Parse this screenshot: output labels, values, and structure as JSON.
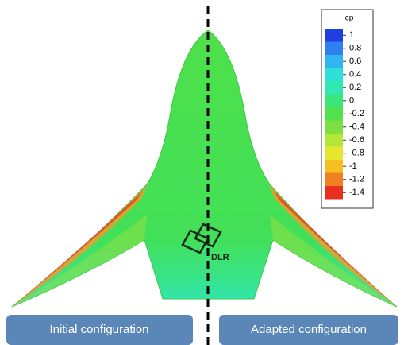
{
  "colorbar": {
    "title": "cp",
    "ticks": [
      1,
      0.8,
      0.6,
      0.4,
      0.2,
      0,
      -0.2,
      -0.4,
      -0.6,
      -0.8,
      -1,
      -1.2,
      -1.4
    ],
    "colors": [
      "#1f3fe0",
      "#2f7ff0",
      "#2fb5f0",
      "#2fe0d8",
      "#30e8b0",
      "#3ae67a",
      "#50e050",
      "#7ee040",
      "#b4e838",
      "#e6e630",
      "#f5c020",
      "#f08020",
      "#e83020"
    ]
  },
  "logo": {
    "text": "DLR"
  },
  "buttons": [
    {
      "label": "Initial configuration"
    },
    {
      "label": "Adapted configuration"
    }
  ]
}
